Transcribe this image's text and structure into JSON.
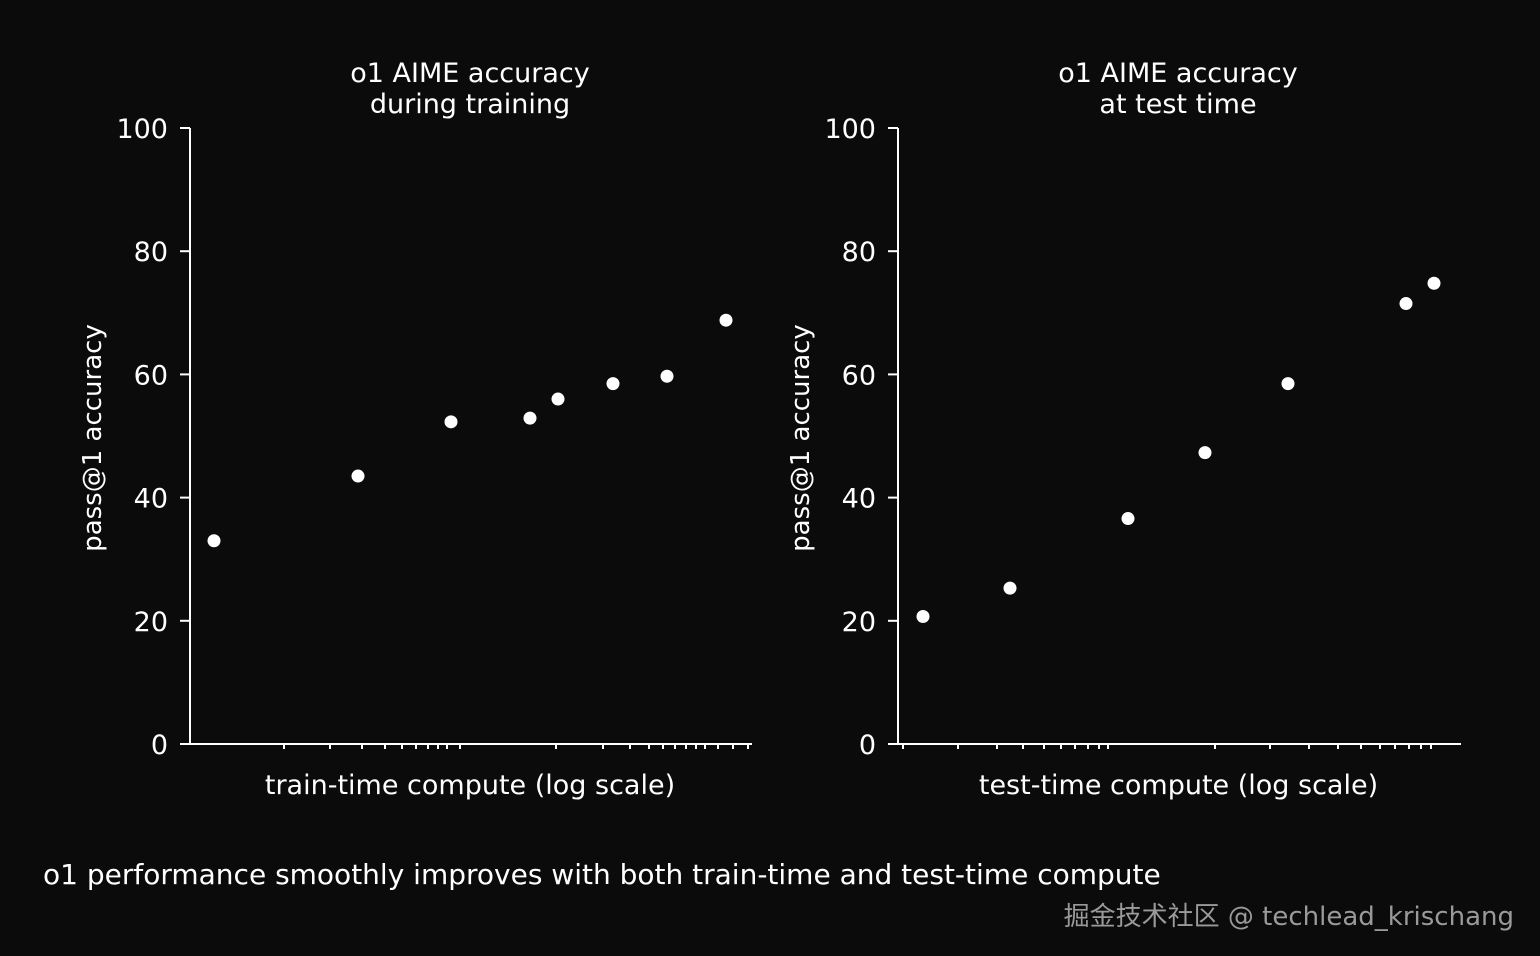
{
  "caption": "o1 performance smoothly improves with both train-time and test-time compute",
  "watermark": "掘金技术社区 @ techlead_krischang",
  "colors": {
    "background": "#0b0b0b",
    "foreground": "#ffffff",
    "watermark": "#9a9a9a"
  },
  "chart_data": [
    {
      "type": "scatter",
      "title": [
        "o1 AIME accuracy",
        "during training"
      ],
      "xlabel": "train-time compute (log scale)",
      "ylabel": "pass@1 accuracy",
      "x_scale": "log",
      "ylim": [
        0,
        100
      ],
      "yticks": [
        0,
        20,
        40,
        60,
        80,
        100
      ],
      "grid": false,
      "series": [
        {
          "values": [
            33,
            43.5,
            52.3,
            52.9,
            56,
            58.5,
            59.7,
            68.8
          ]
        }
      ]
    },
    {
      "type": "scatter",
      "title": [
        "o1 AIME accuracy",
        "at test time"
      ],
      "xlabel": "test-time compute (log scale)",
      "ylabel": "pass@1 accuracy",
      "x_scale": "log",
      "ylim": [
        0,
        100
      ],
      "yticks": [
        0,
        20,
        40,
        60,
        80,
        100
      ],
      "grid": false,
      "series": [
        {
          "values": [
            20.7,
            25.3,
            36.6,
            47.3,
            58.5,
            71.5,
            74.8
          ]
        }
      ]
    }
  ]
}
